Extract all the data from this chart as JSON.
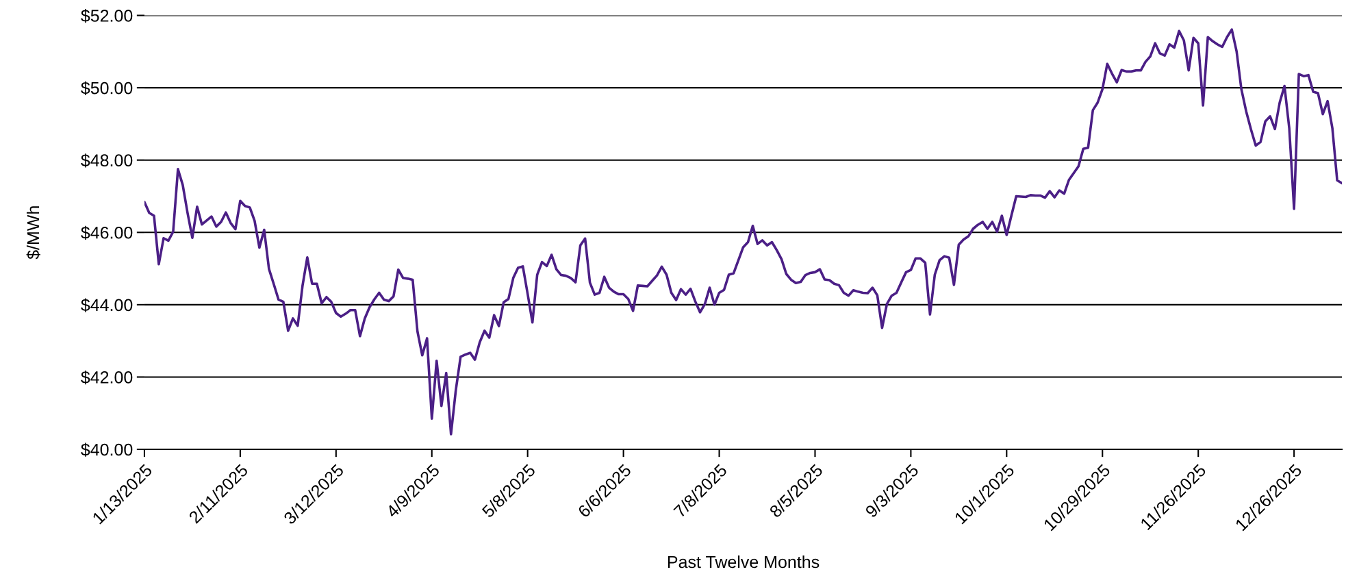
{
  "chart_data": {
    "type": "line",
    "xlabel": "Past Twelve Months",
    "ylabel": "$/MWh",
    "categories": [
      "1/13/2025",
      null,
      null,
      null,
      null,
      null,
      null,
      null,
      null,
      null,
      null,
      null,
      null,
      null,
      null,
      null,
      null,
      null,
      null,
      null,
      "2/11/2025",
      null,
      null,
      null,
      null,
      null,
      null,
      null,
      null,
      null,
      null,
      null,
      null,
      null,
      null,
      null,
      null,
      null,
      null,
      null,
      "3/12/2025",
      null,
      null,
      null,
      null,
      null,
      null,
      null,
      null,
      null,
      null,
      null,
      null,
      null,
      null,
      null,
      null,
      null,
      null,
      null,
      "4/9/2025",
      null,
      null,
      null,
      null,
      null,
      null,
      null,
      null,
      null,
      null,
      null,
      null,
      null,
      null,
      null,
      null,
      null,
      null,
      null,
      "5/8/2025",
      null,
      null,
      null,
      null,
      null,
      null,
      null,
      null,
      null,
      null,
      null,
      null,
      null,
      null,
      null,
      null,
      null,
      null,
      null,
      "6/6/2025",
      null,
      null,
      null,
      null,
      null,
      null,
      null,
      null,
      null,
      null,
      null,
      null,
      null,
      null,
      null,
      null,
      null,
      null,
      null,
      "7/8/2025",
      null,
      null,
      null,
      null,
      null,
      null,
      null,
      null,
      null,
      null,
      null,
      null,
      null,
      null,
      null,
      null,
      null,
      null,
      null,
      "8/5/2025",
      null,
      null,
      null,
      null,
      null,
      null,
      null,
      null,
      null,
      null,
      null,
      null,
      null,
      null,
      null,
      null,
      null,
      null,
      null,
      "9/3/2025",
      null,
      null,
      null,
      null,
      null,
      null,
      null,
      null,
      null,
      null,
      null,
      null,
      null,
      null,
      null,
      null,
      null,
      null,
      null,
      "10/1/2025",
      null,
      null,
      null,
      null,
      null,
      null,
      null,
      null,
      null,
      null,
      null,
      null,
      null,
      null,
      null,
      null,
      null,
      null,
      null,
      "10/29/2025",
      null,
      null,
      null,
      null,
      null,
      null,
      null,
      null,
      null,
      null,
      null,
      null,
      null,
      null,
      null,
      null,
      null,
      null,
      null,
      "11/26/2025",
      null,
      null,
      null,
      null,
      null,
      null,
      null,
      null,
      null,
      null,
      null,
      null,
      null,
      null,
      null,
      null,
      null,
      null,
      null,
      "12/26/2025",
      null,
      null,
      null,
      null,
      null,
      null,
      null,
      null,
      null,
      null
    ],
    "series": [
      {
        "color": "#4b1f86",
        "values": [
          46.84,
          46.54,
          46.46,
          45.12,
          45.84,
          45.77,
          46.02,
          47.75,
          47.31,
          46.54,
          45.85,
          46.71,
          46.22,
          46.33,
          46.44,
          46.16,
          46.29,
          46.55,
          46.26,
          46.09,
          46.87,
          46.73,
          46.69,
          46.32,
          45.58,
          46.07,
          44.99,
          44.57,
          44.14,
          44.08,
          43.28,
          43.62,
          43.42,
          44.52,
          45.31,
          44.58,
          44.58,
          44.04,
          44.21,
          44.08,
          43.77,
          43.67,
          43.75,
          43.85,
          43.85,
          43.13,
          43.62,
          43.93,
          44.15,
          44.33,
          44.14,
          44.1,
          44.23,
          44.97,
          44.74,
          44.72,
          44.69,
          43.26,
          42.6,
          43.07,
          40.85,
          42.45,
          41.2,
          42.11,
          40.42,
          41.63,
          42.56,
          42.62,
          42.67,
          42.48,
          42.96,
          43.28,
          43.09,
          43.71,
          43.41,
          44.07,
          44.16,
          44.74,
          45.02,
          45.06,
          44.3,
          43.51,
          44.83,
          45.18,
          45.07,
          45.38,
          44.98,
          44.82,
          44.8,
          44.74,
          44.62,
          45.64,
          45.83,
          44.61,
          44.28,
          44.33,
          44.77,
          44.47,
          44.36,
          44.29,
          44.29,
          44.16,
          43.83,
          44.53,
          44.52,
          44.51,
          44.66,
          44.81,
          45.05,
          44.83,
          44.33,
          44.13,
          44.43,
          44.28,
          44.44,
          44.09,
          43.79,
          44.02,
          44.47,
          44.0,
          44.33,
          44.41,
          44.83,
          44.87,
          45.23,
          45.59,
          45.73,
          46.18,
          45.68,
          45.78,
          45.64,
          45.73,
          45.51,
          45.26,
          44.85,
          44.69,
          44.6,
          44.63,
          44.82,
          44.88,
          44.9,
          44.98,
          44.7,
          44.68,
          44.58,
          44.54,
          44.33,
          44.25,
          44.4,
          44.36,
          44.33,
          44.32,
          44.47,
          44.26,
          43.36,
          44.02,
          44.25,
          44.33,
          44.62,
          44.9,
          44.96,
          45.28,
          45.28,
          45.16,
          43.73,
          44.83,
          45.23,
          45.34,
          45.3,
          44.55,
          45.66,
          45.8,
          45.89,
          46.1,
          46.21,
          46.29,
          46.1,
          46.29,
          46.02,
          46.46,
          45.93,
          46.47,
          47.0,
          46.99,
          46.98,
          47.03,
          47.02,
          47.02,
          46.96,
          47.14,
          46.97,
          47.16,
          47.07,
          47.45,
          47.64,
          47.83,
          48.31,
          48.34,
          49.38,
          49.59,
          49.96,
          50.66,
          50.39,
          50.15,
          50.49,
          50.45,
          50.45,
          50.48,
          50.48,
          50.72,
          50.87,
          51.23,
          50.95,
          50.89,
          51.2,
          51.11,
          51.57,
          51.31,
          50.48,
          51.38,
          51.23,
          49.51,
          51.4,
          51.29,
          51.2,
          51.13,
          51.4,
          51.61,
          51.01,
          49.96,
          49.35,
          48.85,
          48.4,
          48.5,
          49.07,
          49.21,
          48.86,
          49.59,
          50.05,
          48.88,
          46.65,
          50.38,
          50.32,
          50.35,
          49.89,
          49.85,
          49.27,
          49.63,
          48.88,
          47.44,
          47.36
        ]
      }
    ],
    "ylim": [
      40,
      52
    ],
    "yticks": [
      {
        "value": 40,
        "label": "$40.00"
      },
      {
        "value": 42,
        "label": "$42.00"
      },
      {
        "value": 44,
        "label": "$44.00"
      },
      {
        "value": 46,
        "label": "$46.00"
      },
      {
        "value": 48,
        "label": "$48.00"
      },
      {
        "value": 50,
        "label": "$50.00"
      },
      {
        "value": 52,
        "label": "$52.00"
      }
    ],
    "grid": "y",
    "legend": false
  }
}
